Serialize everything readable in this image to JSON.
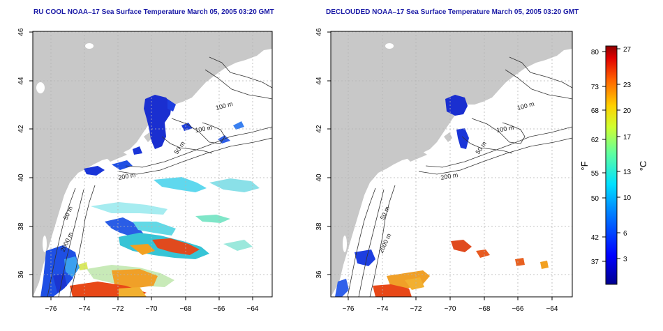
{
  "panels": [
    {
      "title": "RU COOL NOAA–17 Sea Surface Temperature March 05, 2005 03:20 GMT",
      "type": "raw"
    },
    {
      "title": "DECLOUDED NOAA–17 Sea Surface Temperature March 05, 2005 03:20 GMT",
      "type": "declouded"
    }
  ],
  "axes": {
    "x_ticks": [
      "−76",
      "−74",
      "−72",
      "−70",
      "−68",
      "−66",
      "−64"
    ],
    "y_ticks": [
      "46",
      "44",
      "42",
      "40",
      "38",
      "36"
    ]
  },
  "contour_labels": {
    "m100": "100 m",
    "m50": "50 m",
    "m200": "200 m",
    "m2000": "2000 m"
  },
  "colorbar": {
    "unit_f": "°F",
    "unit_c": "°C",
    "f_ticks": [
      "80",
      "73",
      "68",
      "62",
      "55",
      "50",
      "42",
      "37"
    ],
    "c_ticks": [
      "27",
      "23",
      "20",
      "17",
      "13",
      "10",
      "6",
      "3"
    ]
  },
  "colors": {
    "land": "#c8c8c8",
    "title": "#1a1aa6",
    "grid": "#b4b4b4"
  }
}
